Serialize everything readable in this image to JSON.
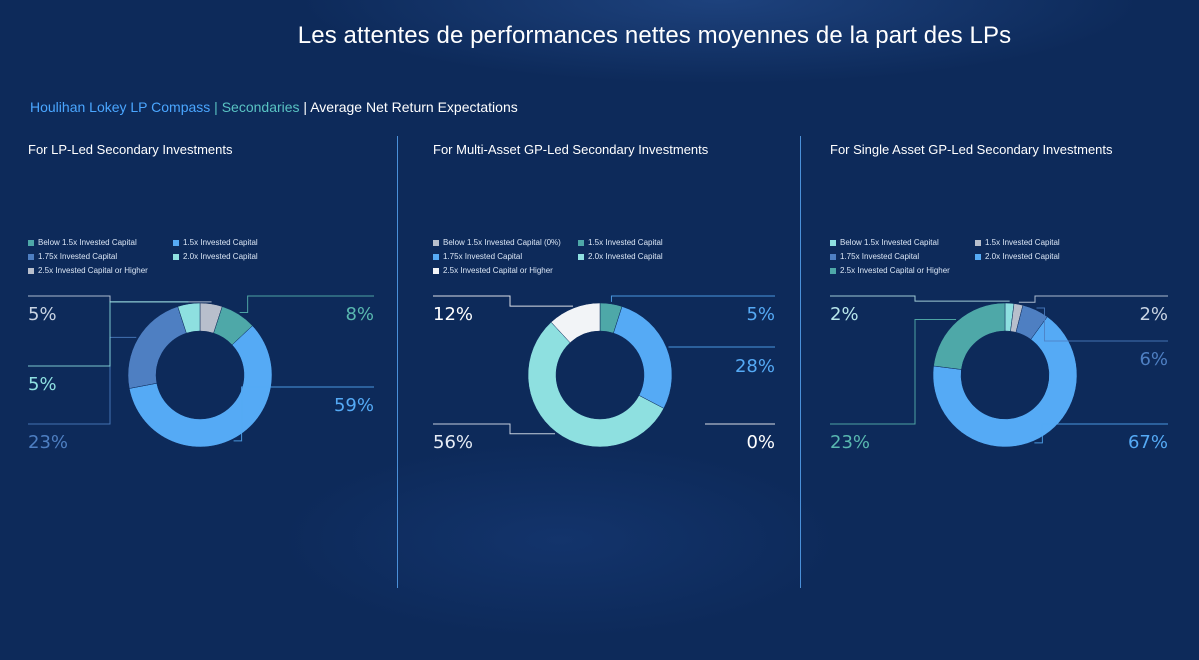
{
  "header": {
    "title": "Les attentes de performances nettes moyennes de la part des LPs",
    "subtitle_brand": "Houlihan Lokey LP Compass",
    "subtitle_sep1": " | ",
    "subtitle_section": "Secondaries",
    "subtitle_sep2": " | ",
    "subtitle_topic": "Average Net Return Expectations"
  },
  "colors": {
    "background": "#0d2a5a",
    "divider": "#4a90d9"
  },
  "chart_data": [
    {
      "type": "pie",
      "title": "For LP-Led Secondary Investments",
      "legend_order": [
        "Below 1.5x Invested Capital",
        "1.5x Invested Capital",
        "1.75x Invested Capital",
        "2.0x Invested Capital",
        "2.5x Invested Capital or Higher"
      ],
      "slices": [
        {
          "label": "2.5x Invested Capital or Higher",
          "value": 5,
          "text": "5%",
          "color": "#b8bfcc",
          "text_color": "#c9d4e3",
          "side": "left",
          "order": 0
        },
        {
          "label": "Below 1.5x Invested Capital",
          "value": 8,
          "text": "8%",
          "color": "#4ea8a8",
          "text_color": "#59b8b0",
          "side": "right",
          "order": 0
        },
        {
          "label": "1.5x Invested Capital",
          "value": 59,
          "text": "59%",
          "color": "#55aaf5",
          "text_color": "#55aaf5",
          "side": "right",
          "order": 1
        },
        {
          "label": "1.75x Invested Capital",
          "value": 23,
          "text": "23%",
          "color": "#4e7fc2",
          "text_color": "#4e7fc2",
          "side": "left",
          "order": 2
        },
        {
          "label": "2.0x Invested Capital",
          "value": 5,
          "text": "5%",
          "color": "#8ee0e0",
          "text_color": "#8ee0e0",
          "side": "left",
          "order": 1
        }
      ],
      "legend": [
        {
          "label": "Below 1.5x Invested Capital",
          "color": "#4ea8a8"
        },
        {
          "label": "1.5x Invested Capital",
          "color": "#55aaf5"
        },
        {
          "label": "1.75x Invested Capital",
          "color": "#4e7fc2"
        },
        {
          "label": "2.0x Invested Capital",
          "color": "#8ee0e0"
        },
        {
          "label": "2.5x Invested Capital or Higher",
          "color": "#b8bfcc"
        }
      ]
    },
    {
      "type": "pie",
      "title": "For Multi-Asset GP-Led Secondary Investments",
      "slices": [
        {
          "label": "Below 1.5x Invested Capital (0%)",
          "value": 0,
          "text": "0%",
          "color": "#b8bfcc",
          "text_color": "#ffffff",
          "side": "right",
          "order": 2
        },
        {
          "label": "1.5x Invested Capital",
          "value": 5,
          "text": "5%",
          "color": "#4ea8a8",
          "text_color": "#55aaf5",
          "side": "right",
          "order": 0
        },
        {
          "label": "1.75x Invested Capital",
          "value": 28,
          "text": "28%",
          "color": "#55aaf5",
          "text_color": "#55aaf5",
          "side": "right",
          "order": 1
        },
        {
          "label": "2.0x Invested Capital",
          "value": 56,
          "text": "56%",
          "color": "#8ee0e0",
          "text_color": "#e6ecf5",
          "side": "left",
          "order": 1
        },
        {
          "label": "2.5x Invested Capital or Higher",
          "value": 12,
          "text": "12%",
          "color": "#f2f4f7",
          "text_color": "#ffffff",
          "side": "left",
          "order": 0
        }
      ],
      "legend": [
        {
          "label": "Below 1.5x Invested Capital (0%)",
          "color": "#b8bfcc"
        },
        {
          "label": "1.5x Invested Capital",
          "color": "#4ea8a8"
        },
        {
          "label": "1.75x Invested Capital",
          "color": "#55aaf5"
        },
        {
          "label": "2.0x Invested Capital",
          "color": "#8ee0e0"
        },
        {
          "label": "2.5x Invested Capital or Higher",
          "color": "#f2f4f7"
        }
      ]
    },
    {
      "type": "pie",
      "title": "For Single Asset GP-Led Secondary Investments",
      "slices": [
        {
          "label": "Below 1.5x Invested Capital",
          "value": 2,
          "text": "2%",
          "color": "#8ee0e0",
          "text_color": "#b8e6ea",
          "side": "left",
          "order": 0
        },
        {
          "label": "1.5x Invested Capital",
          "value": 2,
          "text": "2%",
          "color": "#b8bfcc",
          "text_color": "#c9d4e3",
          "side": "right",
          "order": 0
        },
        {
          "label": "1.75x Invested Capital",
          "value": 6,
          "text": "6%",
          "color": "#4e7fc2",
          "text_color": "#4e7fc2",
          "side": "right",
          "order": 1
        },
        {
          "label": "2.0x Invested Capital",
          "value": 67,
          "text": "67%",
          "color": "#55aaf5",
          "text_color": "#55aaf5",
          "side": "right",
          "order": 2
        },
        {
          "label": "2.5x Invested Capital or Higher",
          "value": 23,
          "text": "23%",
          "color": "#4ea8a8",
          "text_color": "#59b8b0",
          "side": "left",
          "order": 1
        }
      ],
      "legend": [
        {
          "label": "Below 1.5x Invested Capital",
          "color": "#8ee0e0"
        },
        {
          "label": "1.5x Invested Capital",
          "color": "#b8bfcc"
        },
        {
          "label": "1.75x Invested Capital",
          "color": "#4e7fc2"
        },
        {
          "label": "2.0x Invested Capital",
          "color": "#55aaf5"
        },
        {
          "label": "2.5x Invested Capital or Higher",
          "color": "#4ea8a8"
        }
      ]
    }
  ]
}
